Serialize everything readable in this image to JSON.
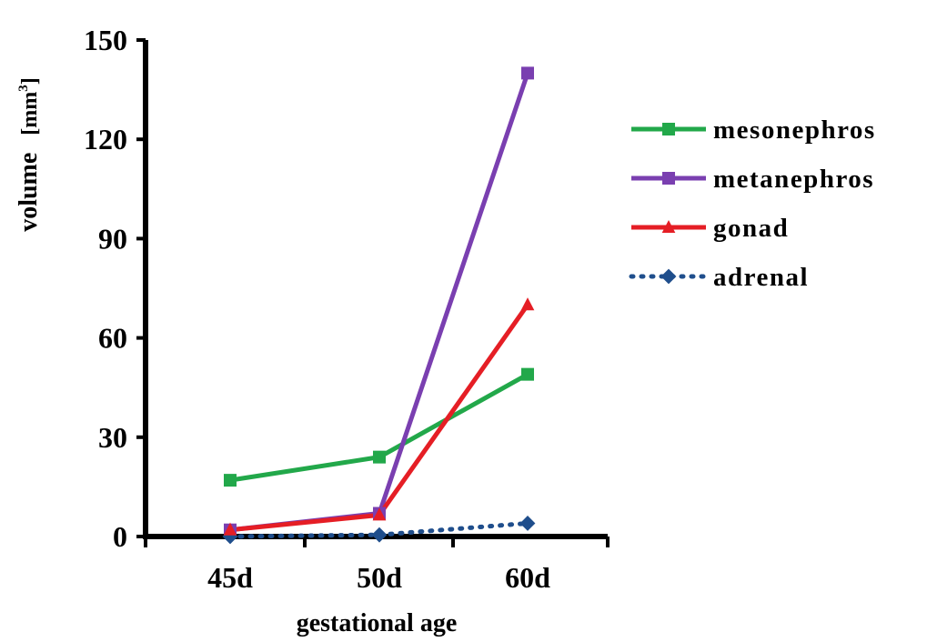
{
  "chart_data": {
    "type": "line",
    "title": "",
    "categories": [
      "45d",
      "50d",
      "60d"
    ],
    "xlabel": "gestational age",
    "ylabel": "volume",
    "ylabel_unit_prefix": "[mm",
    "ylabel_unit_exponent": "3",
    "ylabel_unit_suffix": "]",
    "ylim": [
      0,
      150
    ],
    "yticks": [
      "0",
      "30",
      "60",
      "90",
      "120",
      "150"
    ],
    "grid": false,
    "legend_position": "right",
    "series": [
      {
        "name": "mesonephros",
        "values": [
          17,
          24,
          49
        ],
        "color": "#22a84a",
        "marker": "square",
        "line": "solid"
      },
      {
        "name": "metanephros",
        "values": [
          2,
          7,
          140
        ],
        "color": "#7a3fb0",
        "marker": "square",
        "line": "solid"
      },
      {
        "name": "gonad",
        "values": [
          2,
          6.5,
          70
        ],
        "color": "#e51e25",
        "marker": "triangle",
        "line": "solid"
      },
      {
        "name": "adrenal",
        "values": [
          0,
          0.5,
          4
        ],
        "color": "#1f4e8c",
        "marker": "diamond",
        "line": "dotted"
      }
    ]
  }
}
